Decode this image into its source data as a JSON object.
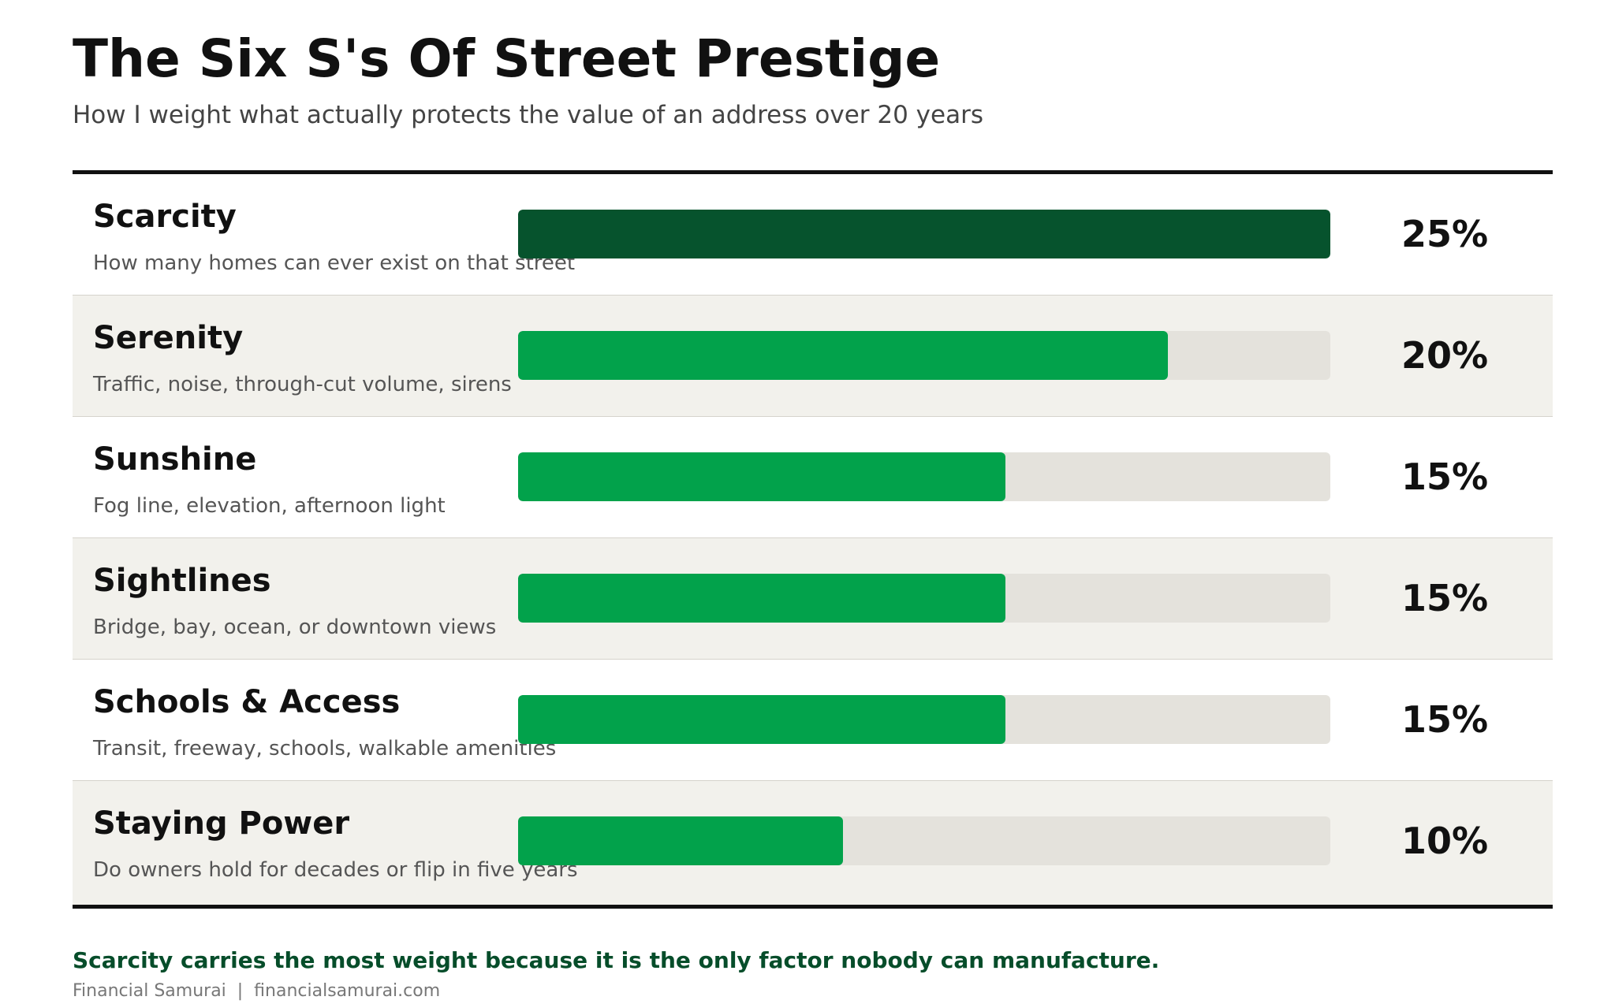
{
  "title": "The Six S's Of Street Prestige",
  "subtitle": "How I weight what actually protects the value of an address over 20 years",
  "takeaway": "Scarcity carries the most weight because it is the only factor nobody can manufacture.",
  "source": "Financial Samurai  |  financialsamurai.com",
  "colors": {
    "highlight": "#06532d",
    "bar": "#02a24b",
    "track": "#e4e2dc",
    "takeaway": "#064d2a"
  },
  "chart_data": {
    "type": "bar",
    "orientation": "horizontal",
    "title": "The Six S's Of Street Prestige",
    "subtitle": "How I weight what actually protects the value of an address over 20 years",
    "xlim": [
      0,
      25
    ],
    "categories": [
      "Scarcity",
      "Serenity",
      "Sunshine",
      "Sightlines",
      "Schools & Access",
      "Staying Power"
    ],
    "descriptions": [
      "How many homes can ever exist on that street",
      "Traffic, noise, through-cut volume, sirens",
      "Fog line, elevation, afternoon light",
      "Bridge, bay, ocean, or downtown views",
      "Transit, freeway, schools, walkable amenities",
      "Do owners hold for decades or flip in five years"
    ],
    "values": [
      25,
      20,
      15,
      15,
      15,
      10
    ],
    "value_labels": [
      "25%",
      "20%",
      "15%",
      "15%",
      "15%",
      "10%"
    ],
    "highlighted": [
      "Scarcity"
    ]
  }
}
